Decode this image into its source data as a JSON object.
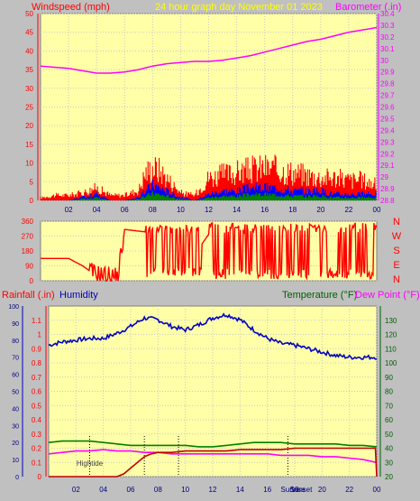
{
  "header": {
    "left_label": "Windspeed (mph)",
    "center_label": "24 hour graph day   November 01 2023",
    "right_label": "Barometer (.in)"
  },
  "lower_header": {
    "rainfall_label": "Rainfall (.in)",
    "humidity_label": "Humidity",
    "temperature_label": "Temperature (°F)",
    "dewpoint_label": "Dew Point (°F)"
  },
  "colors": {
    "plot_bg": "#ffffa8",
    "frame": "#c0c0c0",
    "wind": "#ff0000",
    "gust": "#0000ff",
    "green": "#008000",
    "barometer": "#ff00ff",
    "humidity": "#0000c0",
    "temperature": "#008000",
    "dewpoint": "#ff00ff",
    "rain": "#c00000",
    "axis_red": "#ff0000",
    "axis_pink": "#ff00ff",
    "axis_green": "#006000",
    "title_yellow": "#ffff00"
  },
  "compass_letters": [
    "N",
    "W",
    "S",
    "E",
    "N"
  ],
  "annotations": {
    "hightide": "Hightide",
    "sunrise": "Sunrise",
    "sunset": "Sunset"
  },
  "chart_data": [
    {
      "type": "line",
      "name": "wind-and-barometer",
      "x_ticks": [
        "02",
        "04",
        "06",
        "08",
        "10",
        "12",
        "14",
        "16",
        "18",
        "20",
        "22",
        "00"
      ],
      "x_hours": [
        2,
        4,
        6,
        8,
        10,
        12,
        14,
        16,
        18,
        20,
        22,
        24
      ],
      "ylabel": "Windspeed (mph)",
      "ylim": [
        0,
        50
      ],
      "y_ticks": [
        0,
        5,
        10,
        15,
        20,
        25,
        30,
        35,
        40,
        45,
        50
      ],
      "y2label": "Barometer (.in)",
      "y2lim": [
        28.8,
        30.4
      ],
      "y2_ticks": [
        "28.8",
        "28.9",
        "29",
        "29.1",
        "29.2",
        "29.3",
        "29.4",
        "29.5",
        "29.6",
        "29.7",
        "29.8",
        "29.9",
        "30",
        "30.1",
        "30.2",
        "30.3",
        "30.4"
      ],
      "barometer": {
        "x": [
          0,
          1,
          2,
          3,
          4,
          5,
          6,
          7,
          8,
          9,
          10,
          11,
          12,
          13,
          14,
          15,
          16,
          17,
          18,
          19,
          20,
          21,
          22,
          23,
          24
        ],
        "y": [
          29.95,
          29.94,
          29.93,
          29.91,
          29.89,
          29.89,
          29.9,
          29.92,
          29.95,
          29.97,
          29.98,
          29.99,
          29.99,
          30.0,
          30.02,
          30.04,
          30.07,
          30.1,
          30.13,
          30.16,
          30.18,
          30.21,
          30.24,
          30.26,
          30.28
        ]
      },
      "gust_peak": {
        "x": [
          0,
          1,
          2,
          3,
          4,
          5,
          6,
          7,
          7.5,
          8,
          8.5,
          9,
          10,
          11,
          12,
          13,
          14,
          15,
          16,
          17,
          18,
          19,
          20,
          21,
          22,
          23,
          24
        ],
        "y": [
          1,
          2,
          2,
          3,
          5,
          2,
          2,
          4,
          11,
          13,
          12,
          9,
          3,
          2,
          9,
          10,
          11,
          12,
          13,
          12,
          11,
          10,
          9,
          9,
          8,
          8,
          6
        ]
      },
      "wind_avg": {
        "x": [
          0,
          1,
          2,
          3,
          4,
          5,
          6,
          7,
          7.5,
          8,
          8.5,
          9,
          10,
          11,
          12,
          13,
          14,
          15,
          16,
          17,
          18,
          19,
          20,
          21,
          22,
          23,
          24
        ],
        "y": [
          0,
          0,
          0,
          1,
          2,
          0,
          0,
          1,
          3,
          5,
          4,
          3,
          1,
          0,
          2,
          3,
          3,
          4,
          4,
          4,
          3,
          3,
          3,
          2,
          2,
          2,
          2
        ]
      }
    },
    {
      "type": "line",
      "name": "wind-direction",
      "y_ticks": [
        0,
        90,
        180,
        270,
        360
      ],
      "ylim": [
        0,
        360
      ],
      "x": [
        0,
        1,
        2,
        3,
        3.5,
        4,
        5,
        5.5,
        6,
        7,
        8,
        9,
        10,
        11,
        12,
        13,
        14,
        15,
        16,
        17,
        18,
        19,
        20,
        21,
        22,
        23,
        24
      ],
      "y": [
        135,
        135,
        135,
        90,
        60,
        40,
        30,
        20,
        310,
        300,
        290,
        250,
        200,
        160,
        280,
        180,
        300,
        260,
        230,
        320,
        210,
        290,
        340,
        200,
        310,
        230,
        300
      ]
    },
    {
      "type": "line",
      "name": "rain-humidity-temperature",
      "rain_ylim": [
        0,
        1.2
      ],
      "rain_ticks": [
        "0",
        "0.1",
        "0.2",
        "0.3",
        "0.4",
        "0.5",
        "0.6",
        "0.7",
        "0.8",
        "0.9",
        "1",
        "1.1"
      ],
      "humidity_ylim": [
        0,
        100
      ],
      "humidity_ticks": [
        0,
        10,
        20,
        30,
        40,
        50,
        60,
        70,
        80,
        90,
        100
      ],
      "temp_ylim": [
        20,
        140
      ],
      "temp_ticks": [
        20,
        30,
        40,
        50,
        60,
        70,
        80,
        90,
        100,
        110,
        120,
        130
      ],
      "humidity": {
        "x": [
          0,
          1,
          2,
          3,
          4,
          5,
          6,
          7,
          8,
          9,
          10,
          11,
          12,
          13,
          14,
          15,
          16,
          17,
          18,
          19,
          20,
          21,
          22,
          23,
          24
        ],
        "y": [
          77,
          79,
          80,
          81,
          81,
          84,
          88,
          93,
          92,
          88,
          86,
          89,
          93,
          95,
          92,
          86,
          81,
          78,
          77,
          75,
          73,
          71,
          70,
          70,
          70
        ]
      },
      "temperature": {
        "x": [
          0,
          1,
          2,
          3,
          4,
          5,
          6,
          7,
          8,
          9,
          10,
          11,
          12,
          13,
          14,
          15,
          16,
          17,
          18,
          19,
          20,
          21,
          22,
          23,
          24
        ],
        "y": [
          44,
          45,
          45,
          45,
          44,
          43,
          42,
          42,
          42,
          42,
          42,
          41,
          41,
          42,
          43,
          44,
          44,
          44,
          43,
          43,
          43,
          43,
          42,
          42,
          41
        ]
      },
      "dewpoint": {
        "x": [
          0,
          1,
          2,
          3,
          4,
          5,
          6,
          7,
          8,
          9,
          10,
          11,
          12,
          13,
          14,
          15,
          16,
          17,
          18,
          19,
          20,
          21,
          22,
          23,
          24
        ],
        "y": [
          36,
          37,
          38,
          38,
          39,
          38,
          38,
          37,
          37,
          36,
          36,
          36,
          36,
          36,
          36,
          36,
          36,
          35,
          35,
          35,
          34,
          34,
          33,
          32,
          30
        ]
      },
      "rain": {
        "x": [
          0,
          5,
          5.5,
          6,
          6.5,
          7,
          7.5,
          8,
          9,
          10,
          11,
          12,
          13,
          14,
          15,
          16,
          17,
          18,
          19,
          20,
          21,
          22,
          23,
          23.9,
          24
        ],
        "y": [
          0,
          0,
          0.02,
          0.06,
          0.1,
          0.14,
          0.16,
          0.17,
          0.17,
          0.18,
          0.18,
          0.18,
          0.18,
          0.19,
          0.19,
          0.19,
          0.19,
          0.2,
          0.2,
          0.2,
          0.2,
          0.2,
          0.2,
          0.2,
          0.0
        ]
      },
      "markers_hours": {
        "hightide": 3.0,
        "sunrise": 7.0,
        "sunset": 17.5,
        "other": 9.5
      }
    }
  ]
}
